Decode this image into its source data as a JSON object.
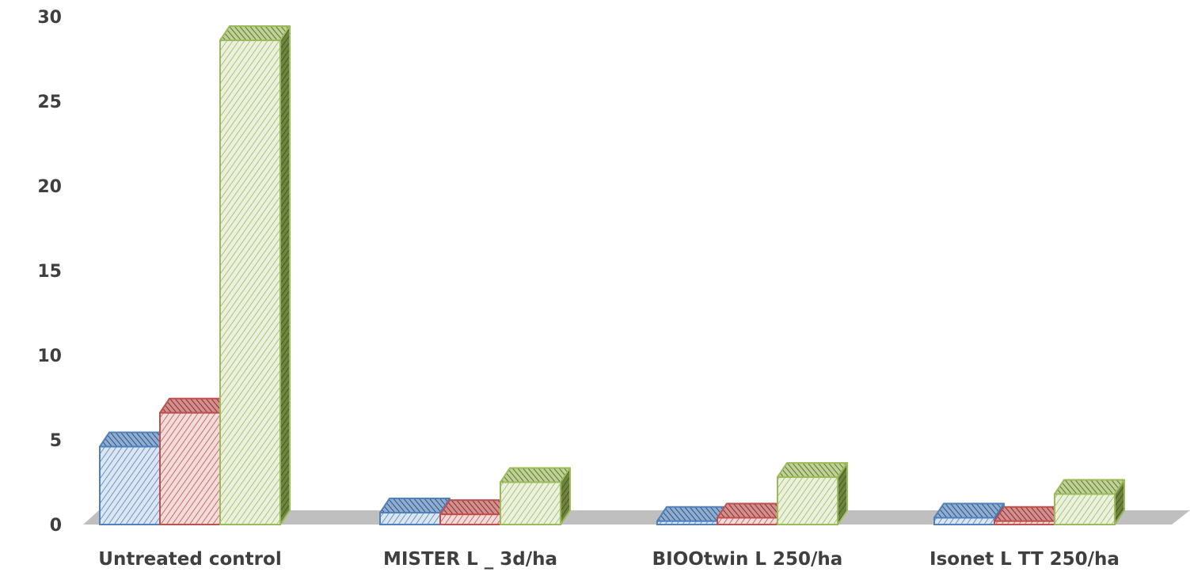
{
  "chart_data": {
    "type": "bar",
    "style": "3d-clustered-column",
    "title": "",
    "xlabel": "",
    "ylabel": "",
    "ylim": [
      0,
      30
    ],
    "yticks": [
      0,
      5,
      10,
      15,
      20,
      25,
      30
    ],
    "categories": [
      "Untreated control",
      "MISTER L _ 3d/ha",
      "BIOOtwin L 250/ha",
      "Isonet L TT 250/ha"
    ],
    "series": [
      {
        "values": [
          4.6,
          0.7,
          0.2,
          0.4
        ],
        "color": "#4f81bd",
        "pattern": "diagonal-hatch"
      },
      {
        "values": [
          6.6,
          0.6,
          0.4,
          0.2
        ],
        "color": "#c0504d",
        "pattern": "diagonal-hatch"
      },
      {
        "values": [
          28.6,
          2.5,
          2.8,
          1.8
        ],
        "color": "#9bbb59",
        "pattern": "diagonal-hatch"
      }
    ],
    "grid": false,
    "legend": "none",
    "floor_color": "#bfbfbf"
  }
}
